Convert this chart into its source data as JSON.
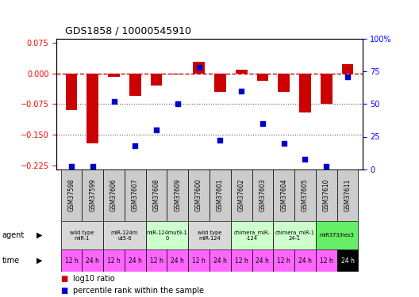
{
  "title": "GDS1858 / 10000545910",
  "samples": [
    "GSM37598",
    "GSM37599",
    "GSM37606",
    "GSM37607",
    "GSM37608",
    "GSM37609",
    "GSM37600",
    "GSM37601",
    "GSM37602",
    "GSM37603",
    "GSM37604",
    "GSM37605",
    "GSM37610",
    "GSM37611"
  ],
  "log10_ratio": [
    -0.09,
    -0.172,
    -0.008,
    -0.055,
    -0.03,
    -0.002,
    0.028,
    -0.045,
    0.008,
    -0.018,
    -0.045,
    -0.095,
    -0.075,
    0.022
  ],
  "percentile_rank": [
    2,
    2,
    52,
    18,
    30,
    50,
    78,
    22,
    60,
    35,
    20,
    8,
    2,
    71
  ],
  "agents": [
    {
      "label": "wild type\nmiR-1",
      "cols": [
        0,
        1
      ],
      "color": "#d8d8d8"
    },
    {
      "label": "miR-124m\nut5-6",
      "cols": [
        2,
        3
      ],
      "color": "#d8d8d8"
    },
    {
      "label": "miR-124mut9-1\n0",
      "cols": [
        4,
        5
      ],
      "color": "#ccffcc"
    },
    {
      "label": "wild type\nmiR-124",
      "cols": [
        6,
        7
      ],
      "color": "#d8d8d8"
    },
    {
      "label": "chimera_miR-\n-124",
      "cols": [
        8,
        9
      ],
      "color": "#ccffcc"
    },
    {
      "label": "chimera_miR-1\n24-1",
      "cols": [
        10,
        11
      ],
      "color": "#ccffcc"
    },
    {
      "label": "miR373/hes3",
      "cols": [
        12,
        13
      ],
      "color": "#66ee66"
    }
  ],
  "time_labels": [
    "12 h",
    "24 h",
    "12 h",
    "24 h",
    "12 h",
    "24 h",
    "12 h",
    "24 h",
    "12 h",
    "24 h",
    "12 h",
    "24 h",
    "12 h",
    "24 h"
  ],
  "time_colors": [
    "#ff66ff",
    "#ff66ff",
    "#ff66ff",
    "#ff66ff",
    "#ff66ff",
    "#ff66ff",
    "#ff66ff",
    "#ff66ff",
    "#ff66ff",
    "#ff66ff",
    "#ff66ff",
    "#ff66ff",
    "#ff66ff",
    "#000000"
  ],
  "ylim_left": [
    -0.235,
    0.085
  ],
  "ylim_right": [
    0,
    100
  ],
  "yticks_left": [
    0.075,
    0,
    -0.075,
    -0.15,
    -0.225
  ],
  "yticks_right": [
    100,
    75,
    50,
    25,
    0
  ],
  "bar_color": "#cc0000",
  "dot_color": "#0000cc",
  "hline_color": "#cc0000",
  "dotted_color": "#555555"
}
